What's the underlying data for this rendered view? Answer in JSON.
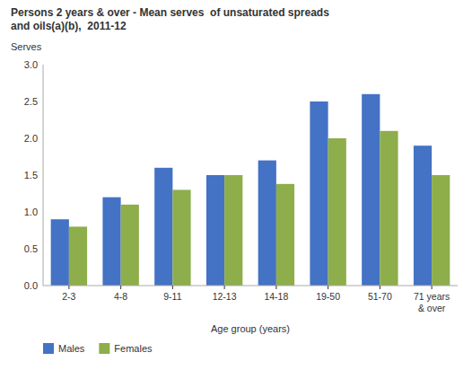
{
  "chart_data": {
    "type": "bar",
    "title": "Persons 2 years & over - Mean serves  of unsaturated spreads\nand oils(a)(b),  2011-12",
    "ylabel": "Serves",
    "xlabel": "Age group (years)",
    "categories": [
      "2-3",
      "4-8",
      "9-11",
      "12-13",
      "14-18",
      "19-50",
      "51-70",
      "71 years\n& over"
    ],
    "series": [
      {
        "name": "Males",
        "color": "#4472C4",
        "values": [
          0.9,
          1.2,
          1.6,
          1.5,
          1.7,
          2.5,
          2.6,
          1.9
        ]
      },
      {
        "name": "Females",
        "color": "#8DAE4B",
        "values": [
          0.8,
          1.1,
          1.3,
          1.5,
          1.38,
          2.0,
          2.1,
          1.5
        ]
      }
    ],
    "ylim": [
      0,
      3.0
    ],
    "yticks": [
      {
        "value": 0,
        "label": "0.0"
      },
      0.5,
      {
        "value": 1,
        "label": "1.0"
      },
      1.5,
      {
        "value": 2,
        "label": "2.0"
      },
      2.5,
      {
        "value": 3,
        "label": "3.0"
      }
    ],
    "grid": false,
    "legend": "bottom"
  }
}
